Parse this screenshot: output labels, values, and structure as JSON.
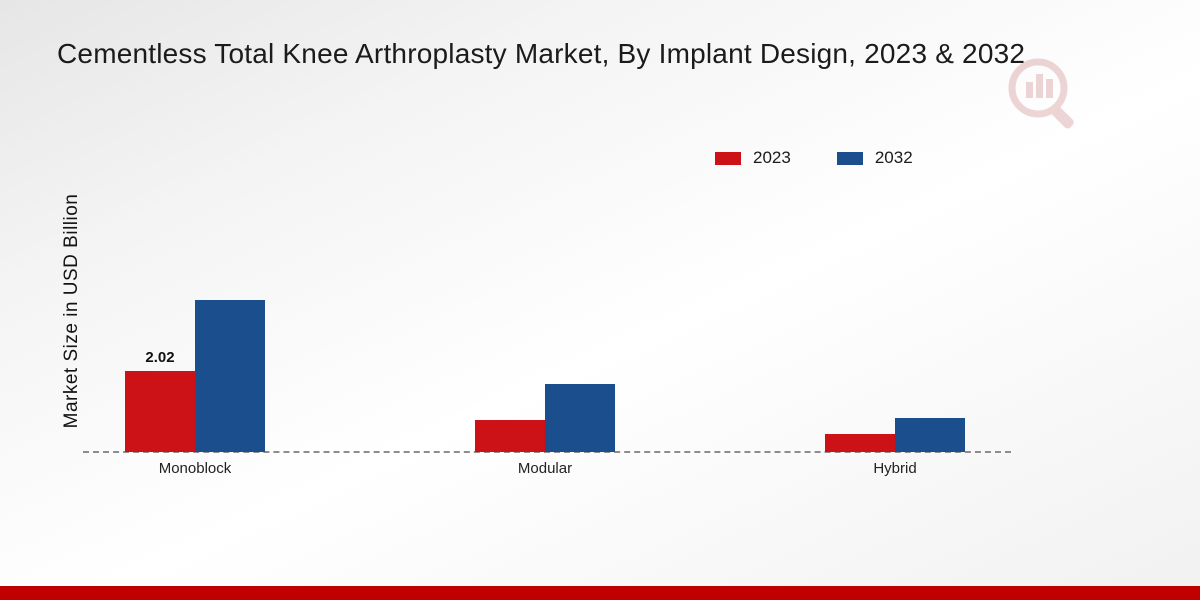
{
  "title": "Cementless Total Knee Arthroplasty Market, By Implant Design, 2023 & 2032",
  "chart_data": {
    "type": "bar",
    "title": "Cementless Total Knee Arthroplasty Market, By Implant Design, 2023 & 2032",
    "categories": [
      "Monoblock",
      "Modular",
      "Hybrid"
    ],
    "series": [
      {
        "name": "2023",
        "color": "#cc1217",
        "values": [
          2.02,
          0.8,
          0.45
        ]
      },
      {
        "name": "2032",
        "color": "#1a4e8c",
        "values": [
          3.8,
          1.7,
          0.85
        ]
      }
    ],
    "bar_labels": [
      [
        "2.02",
        "",
        ""
      ],
      [
        "",
        "",
        ""
      ]
    ],
    "xlabel": "",
    "ylabel": "Market Size in USD Billion",
    "ylim": [
      0,
      4
    ],
    "grid": false,
    "legend_position": "top-right",
    "baseline_style": "dashed"
  },
  "footer": {
    "bar_color": "#c00000"
  },
  "watermark": {
    "icon": "bar-chart-magnifier-logo",
    "color": "#c87878"
  }
}
